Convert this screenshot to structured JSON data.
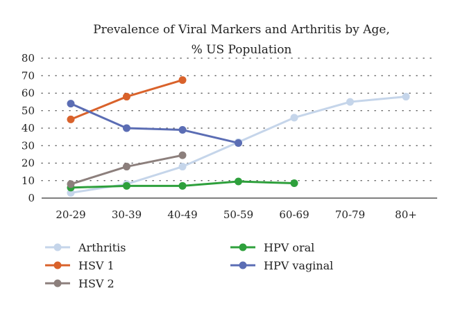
{
  "chart_data": {
    "type": "line",
    "title": "Prevalence of Viral Markers and Arthritis by Age,",
    "subtitle": "% US Population",
    "categories": [
      "20-29",
      "30-39",
      "40-49",
      "50-59",
      "60-69",
      "70-79",
      "80+"
    ],
    "ylim": [
      0,
      80
    ],
    "yticks": [
      0,
      10,
      20,
      30,
      40,
      50,
      60,
      70,
      80
    ],
    "grid": "horizontal-dotted",
    "legend_position": "bottom",
    "series": [
      {
        "name": "Arthritis",
        "color": "#c5d5ea",
        "values": [
          3,
          8,
          18,
          32,
          46,
          55,
          58
        ]
      },
      {
        "name": "HPV oral",
        "color": "#2ea03c",
        "values": [
          6,
          7,
          7,
          9.5,
          8.5,
          null,
          null
        ]
      },
      {
        "name": "HSV 1",
        "color": "#d9622b",
        "values": [
          45,
          58,
          67.5,
          null,
          null,
          null,
          null
        ]
      },
      {
        "name": "HPV vaginal",
        "color": "#5b6db4",
        "values": [
          54,
          40,
          39,
          31.5,
          null,
          null,
          null
        ]
      },
      {
        "name": "HSV 2",
        "color": "#8c7f7c",
        "values": [
          8,
          18,
          24.5,
          null,
          null,
          null,
          null
        ]
      }
    ]
  }
}
